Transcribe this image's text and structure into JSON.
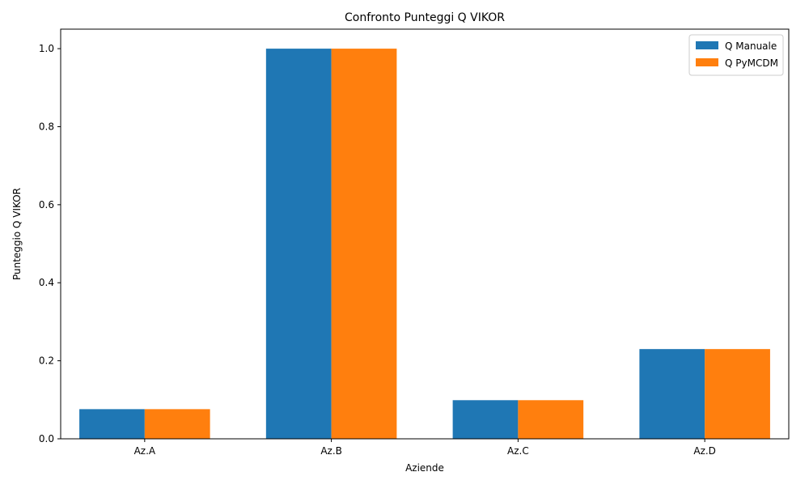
{
  "chart_data": {
    "type": "bar",
    "title": "Confronto Punteggi Q VIKOR",
    "xlabel": "Aziende",
    "ylabel": "Punteggio Q VIKOR",
    "categories": [
      "Az.A",
      "Az.B",
      "Az.C",
      "Az.D"
    ],
    "series": [
      {
        "name": "Q Manuale",
        "color": "#1f77b4",
        "values": [
          0.076,
          1.0,
          0.099,
          0.23
        ]
      },
      {
        "name": "Q PyMCDM",
        "color": "#ff7f0e",
        "values": [
          0.076,
          1.0,
          0.099,
          0.23
        ]
      }
    ],
    "ylim": [
      0,
      1.05
    ],
    "yticks": [
      "0.0",
      "0.2",
      "0.4",
      "0.6",
      "0.8",
      "1.0"
    ],
    "grid": false,
    "legend": "top-right"
  }
}
